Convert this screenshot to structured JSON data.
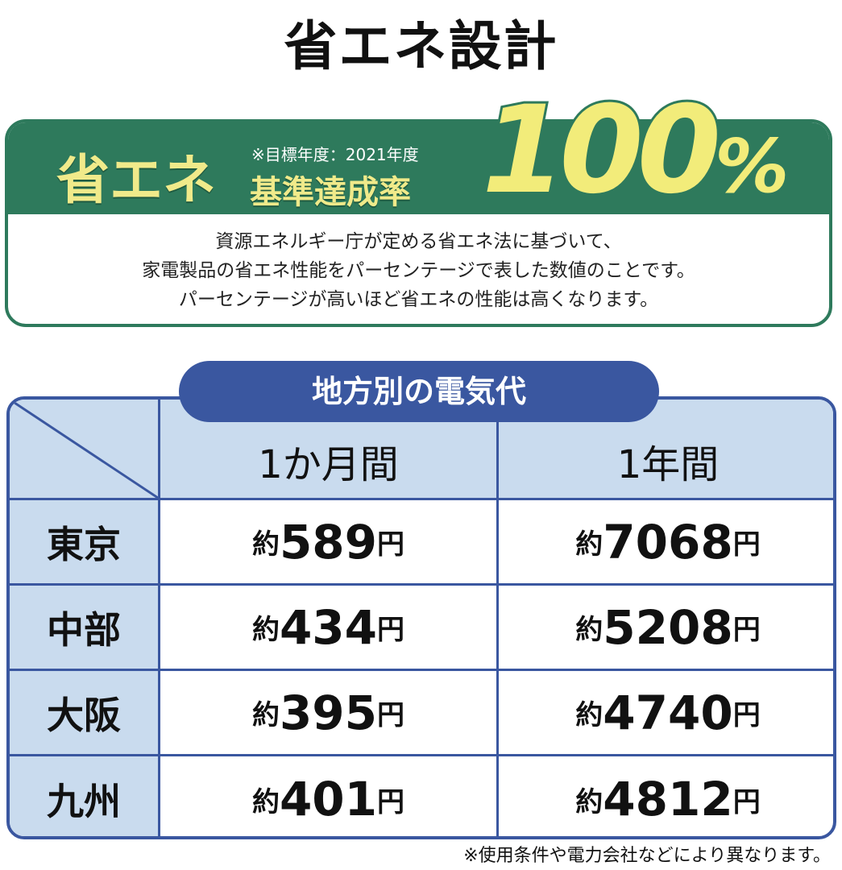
{
  "title": "省エネ設計",
  "banner": {
    "label": "省エネ",
    "note": "※目標年度：2021年度",
    "sub_label": "基準達成率",
    "value": "100",
    "unit": "%",
    "description": [
      "資源エネルギー庁が定める省エネ法に基づいて、",
      "家電製品の省エネ性能をパーセンテージで表した数値のことです。",
      "パーセンテージが高いほど省エネの性能は高くなります。"
    ]
  },
  "table": {
    "title": "地方別の電気代",
    "columns": [
      "1か月間",
      "1年間"
    ],
    "prefix": "約",
    "suffix": "円",
    "rows": [
      {
        "region": "東京",
        "monthly": "589",
        "yearly": "7068"
      },
      {
        "region": "中部",
        "monthly": "434",
        "yearly": "5208"
      },
      {
        "region": "大阪",
        "monthly": "395",
        "yearly": "4740"
      },
      {
        "region": "九州",
        "monthly": "401",
        "yearly": "4812"
      }
    ]
  },
  "footnote": "※使用条件や電力会社などにより異なります。",
  "colors": {
    "green": "#2e7a5c",
    "yellow": "#f0ea8a",
    "blue": "#3a57a0",
    "light_blue": "#c9dbee"
  }
}
